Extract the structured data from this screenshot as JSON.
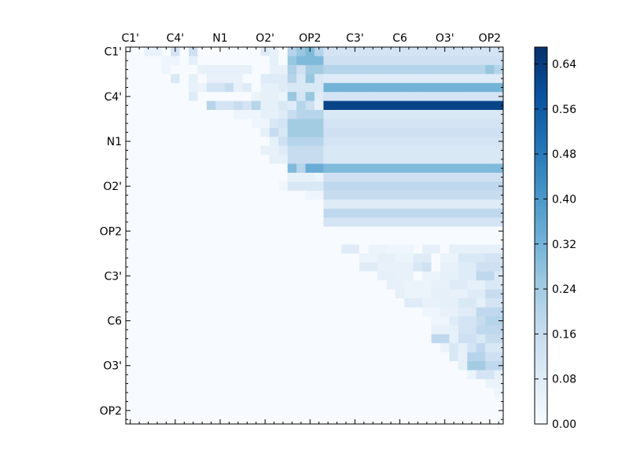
{
  "chart_data": {
    "type": "heatmap",
    "n_cells": 42,
    "tick_labels": [
      "C1'",
      "C4'",
      "N1",
      "O2'",
      "OP2",
      "C3'",
      "C6",
      "O3'",
      "OP2"
    ],
    "tick_cells": [
      0.5,
      5.5,
      10.5,
      15.5,
      20.5,
      25.5,
      30.5,
      35.5,
      40.5
    ],
    "colorbar": {
      "min": 0.0,
      "max": 0.67,
      "ticks": [
        "0.00",
        "0.08",
        "0.16",
        "0.24",
        "0.32",
        "0.40",
        "0.48",
        "0.56",
        "0.64"
      ],
      "tick_values": [
        0.0,
        0.08,
        0.16,
        0.24,
        0.32,
        0.4,
        0.48,
        0.56,
        0.64
      ]
    },
    "colormap": "Blues",
    "colormap_stops": [
      "#f7fbff",
      "#deebf7",
      "#c6dbef",
      "#9ecae1",
      "#6baed6",
      "#4292c6",
      "#2171b5",
      "#08519c",
      "#08306b"
    ],
    "grid": false,
    "legend": "colorbar-right",
    "row_values": [
      {
        "row": 0,
        "segments": [
          [
            2,
            3,
            0.05
          ],
          [
            5,
            5,
            0.12
          ],
          [
            7,
            7,
            0.14
          ],
          [
            15,
            15,
            0.08
          ],
          [
            16,
            16,
            0.05
          ],
          [
            18,
            18,
            0.2
          ],
          [
            19,
            19,
            0.26
          ],
          [
            20,
            20,
            0.3
          ],
          [
            21,
            21,
            0.2
          ],
          [
            22,
            41,
            0.12
          ]
        ]
      },
      {
        "row": 1,
        "segments": [
          [
            4,
            5,
            0.03
          ],
          [
            7,
            7,
            0.06
          ],
          [
            16,
            16,
            0.06
          ],
          [
            18,
            18,
            0.26
          ],
          [
            19,
            21,
            0.3
          ],
          [
            22,
            41,
            0.14
          ]
        ]
      },
      {
        "row": 2,
        "segments": [
          [
            4,
            4,
            0.03
          ],
          [
            8,
            8,
            0.05
          ],
          [
            9,
            13,
            0.06
          ],
          [
            16,
            17,
            0.05
          ],
          [
            18,
            18,
            0.22
          ],
          [
            19,
            19,
            0.14
          ],
          [
            20,
            21,
            0.24
          ],
          [
            22,
            41,
            0.2
          ],
          [
            40,
            40,
            0.26
          ]
        ]
      },
      {
        "row": 3,
        "segments": [
          [
            5,
            5,
            0.1
          ],
          [
            7,
            7,
            0.06
          ],
          [
            9,
            12,
            0.05
          ],
          [
            15,
            17,
            0.08
          ],
          [
            18,
            18,
            0.2
          ],
          [
            19,
            19,
            0.1
          ],
          [
            20,
            20,
            0.26
          ],
          [
            21,
            21,
            0.1
          ],
          [
            22,
            41,
            0.08
          ]
        ]
      },
      {
        "row": 4,
        "segments": [
          [
            7,
            7,
            0.05
          ],
          [
            8,
            8,
            0.04
          ],
          [
            9,
            10,
            0.12
          ],
          [
            11,
            11,
            0.16
          ],
          [
            12,
            12,
            0.05
          ],
          [
            13,
            13,
            0.08
          ],
          [
            15,
            16,
            0.06
          ],
          [
            17,
            17,
            0.08
          ],
          [
            18,
            21,
            0.1
          ],
          [
            22,
            41,
            0.32
          ]
        ]
      },
      {
        "row": 5,
        "segments": [
          [
            7,
            7,
            0.08
          ],
          [
            14,
            14,
            0.04
          ],
          [
            15,
            16,
            0.06
          ],
          [
            17,
            17,
            0.04
          ],
          [
            18,
            18,
            0.26
          ],
          [
            19,
            19,
            0.12
          ],
          [
            20,
            20,
            0.26
          ],
          [
            21,
            21,
            0.08
          ],
          [
            22,
            41,
            0.12
          ]
        ]
      },
      {
        "row": 6,
        "segments": [
          [
            9,
            9,
            0.2
          ],
          [
            10,
            11,
            0.12
          ],
          [
            12,
            12,
            0.16
          ],
          [
            13,
            13,
            0.12
          ],
          [
            14,
            14,
            0.2
          ],
          [
            15,
            16,
            0.06
          ],
          [
            17,
            17,
            0.1
          ],
          [
            18,
            18,
            0.08
          ],
          [
            19,
            19,
            0.2
          ],
          [
            20,
            20,
            0.14
          ],
          [
            21,
            21,
            0.05
          ],
          [
            22,
            41,
            0.62
          ]
        ]
      },
      {
        "row": 7,
        "segments": [
          [
            12,
            14,
            0.03
          ],
          [
            15,
            16,
            0.06
          ],
          [
            17,
            17,
            0.08
          ],
          [
            18,
            18,
            0.16
          ],
          [
            19,
            21,
            0.2
          ],
          [
            22,
            41,
            0.1
          ]
        ]
      },
      {
        "row": 8,
        "segments": [
          [
            14,
            15,
            0.03
          ],
          [
            16,
            16,
            0.1
          ],
          [
            17,
            17,
            0.12
          ],
          [
            18,
            21,
            0.24
          ],
          [
            22,
            41,
            0.12
          ]
        ]
      },
      {
        "row": 9,
        "segments": [
          [
            15,
            15,
            0.06
          ],
          [
            16,
            16,
            0.16
          ],
          [
            17,
            17,
            0.1
          ],
          [
            18,
            21,
            0.24
          ],
          [
            22,
            41,
            0.14
          ]
        ]
      },
      {
        "row": 10,
        "segments": [
          [
            16,
            16,
            0.06
          ],
          [
            17,
            17,
            0.14
          ],
          [
            18,
            21,
            0.2
          ],
          [
            22,
            41,
            0.12
          ]
        ]
      },
      {
        "row": 11,
        "segments": [
          [
            15,
            16,
            0.05
          ],
          [
            17,
            17,
            0.08
          ],
          [
            18,
            21,
            0.16
          ],
          [
            22,
            41,
            0.1
          ]
        ]
      },
      {
        "row": 12,
        "segments": [
          [
            16,
            17,
            0.06
          ],
          [
            18,
            21,
            0.16
          ],
          [
            22,
            41,
            0.1
          ]
        ]
      },
      {
        "row": 13,
        "segments": [
          [
            18,
            18,
            0.3
          ],
          [
            19,
            19,
            0.2
          ],
          [
            20,
            21,
            0.34
          ],
          [
            22,
            41,
            0.3
          ]
        ]
      },
      {
        "row": 14,
        "segments": [
          [
            18,
            20,
            0.06
          ],
          [
            21,
            21,
            0.04
          ],
          [
            22,
            41,
            0.14
          ]
        ]
      },
      {
        "row": 15,
        "segments": [
          [
            17,
            17,
            0.02
          ],
          [
            18,
            21,
            0.1
          ],
          [
            22,
            41,
            0.18
          ]
        ]
      },
      {
        "row": 16,
        "segments": [
          [
            20,
            21,
            0.03
          ],
          [
            22,
            41,
            0.16
          ]
        ]
      },
      {
        "row": 17,
        "segments": [
          [
            22,
            41,
            0.08
          ]
        ]
      },
      {
        "row": 18,
        "segments": [
          [
            22,
            41,
            0.18
          ]
        ]
      },
      {
        "row": 19,
        "segments": [
          [
            22,
            41,
            0.12
          ]
        ]
      },
      {
        "row": 20,
        "segments": []
      },
      {
        "row": 21,
        "segments": []
      },
      {
        "row": 22,
        "segments": [
          [
            24,
            25,
            0.08
          ],
          [
            27,
            28,
            0.04
          ],
          [
            29,
            31,
            0.03
          ],
          [
            33,
            34,
            0.06
          ],
          [
            36,
            41,
            0.06
          ]
        ]
      },
      {
        "row": 23,
        "segments": [
          [
            26,
            27,
            0.04
          ],
          [
            28,
            29,
            0.06
          ],
          [
            30,
            31,
            0.04
          ],
          [
            32,
            33,
            0.08
          ],
          [
            35,
            36,
            0.04
          ],
          [
            37,
            39,
            0.1
          ],
          [
            40,
            41,
            0.12
          ]
        ]
      },
      {
        "row": 24,
        "segments": [
          [
            26,
            27,
            0.08
          ],
          [
            28,
            31,
            0.05
          ],
          [
            32,
            32,
            0.1
          ],
          [
            33,
            33,
            0.14
          ],
          [
            35,
            36,
            0.05
          ],
          [
            37,
            38,
            0.08
          ],
          [
            39,
            41,
            0.14
          ]
        ]
      },
      {
        "row": 25,
        "segments": [
          [
            28,
            29,
            0.06
          ],
          [
            30,
            31,
            0.05
          ],
          [
            33,
            34,
            0.04
          ],
          [
            35,
            36,
            0.06
          ],
          [
            37,
            38,
            0.08
          ],
          [
            39,
            40,
            0.18
          ],
          [
            41,
            41,
            0.1
          ]
        ]
      },
      {
        "row": 26,
        "segments": [
          [
            29,
            30,
            0.05
          ],
          [
            31,
            33,
            0.04
          ],
          [
            34,
            35,
            0.05
          ],
          [
            36,
            37,
            0.08
          ],
          [
            38,
            39,
            0.06
          ],
          [
            40,
            41,
            0.1
          ]
        ]
      },
      {
        "row": 27,
        "segments": [
          [
            30,
            30,
            0.06
          ],
          [
            31,
            33,
            0.04
          ],
          [
            34,
            35,
            0.06
          ],
          [
            36,
            37,
            0.05
          ],
          [
            38,
            39,
            0.08
          ],
          [
            40,
            41,
            0.16
          ]
        ]
      },
      {
        "row": 28,
        "segments": [
          [
            31,
            32,
            0.08
          ],
          [
            33,
            34,
            0.05
          ],
          [
            35,
            36,
            0.06
          ],
          [
            37,
            38,
            0.1
          ],
          [
            39,
            39,
            0.06
          ],
          [
            40,
            41,
            0.12
          ]
        ]
      },
      {
        "row": 29,
        "segments": [
          [
            33,
            34,
            0.03
          ],
          [
            35,
            36,
            0.05
          ],
          [
            37,
            38,
            0.08
          ],
          [
            39,
            41,
            0.18
          ]
        ]
      },
      {
        "row": 30,
        "segments": [
          [
            34,
            35,
            0.03
          ],
          [
            36,
            36,
            0.08
          ],
          [
            37,
            38,
            0.12
          ],
          [
            39,
            39,
            0.16
          ],
          [
            40,
            41,
            0.2
          ]
        ]
      },
      {
        "row": 31,
        "segments": [
          [
            34,
            35,
            0.05
          ],
          [
            36,
            36,
            0.06
          ],
          [
            37,
            38,
            0.12
          ],
          [
            39,
            41,
            0.18
          ]
        ]
      },
      {
        "row": 32,
        "segments": [
          [
            34,
            35,
            0.18
          ],
          [
            36,
            36,
            0.06
          ],
          [
            37,
            38,
            0.14
          ],
          [
            39,
            39,
            0.1
          ],
          [
            40,
            41,
            0.16
          ]
        ]
      },
      {
        "row": 33,
        "segments": [
          [
            35,
            35,
            0.04
          ],
          [
            36,
            36,
            0.1
          ],
          [
            37,
            37,
            0.06
          ],
          [
            38,
            38,
            0.12
          ],
          [
            39,
            39,
            0.18
          ],
          [
            40,
            41,
            0.1
          ]
        ]
      },
      {
        "row": 34,
        "segments": [
          [
            36,
            36,
            0.1
          ],
          [
            37,
            37,
            0.05
          ],
          [
            38,
            39,
            0.2
          ],
          [
            40,
            41,
            0.14
          ]
        ]
      },
      {
        "row": 35,
        "segments": [
          [
            37,
            38,
            0.06
          ],
          [
            38,
            39,
            0.24
          ],
          [
            40,
            41,
            0.18
          ]
        ]
      },
      {
        "row": 36,
        "segments": [
          [
            38,
            38,
            0.04
          ],
          [
            39,
            40,
            0.12
          ],
          [
            41,
            41,
            0.06
          ]
        ]
      },
      {
        "row": 37,
        "segments": [
          [
            40,
            41,
            0.04
          ]
        ]
      },
      {
        "row": 38,
        "segments": [
          [
            41,
            41,
            0.03
          ]
        ]
      },
      {
        "row": 39,
        "segments": []
      },
      {
        "row": 40,
        "segments": []
      },
      {
        "row": 41,
        "segments": []
      }
    ]
  }
}
